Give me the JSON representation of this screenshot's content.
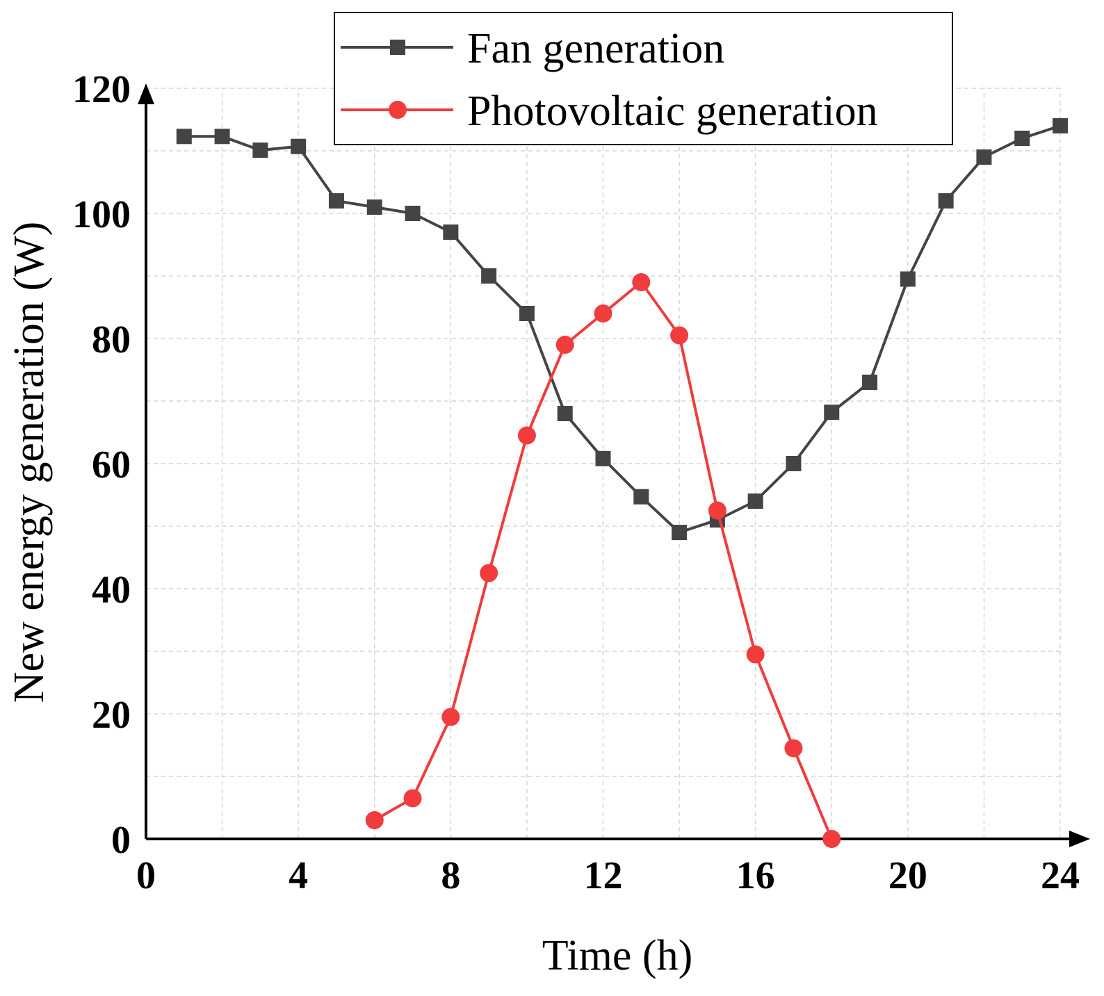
{
  "chart_data": {
    "type": "line",
    "title": "",
    "xlabel": "Time (h)",
    "ylabel": "New energy generation (W)",
    "xlim": [
      0,
      24
    ],
    "ylim": [
      0,
      120
    ],
    "xticks": [
      0,
      4,
      8,
      12,
      16,
      20,
      24
    ],
    "yticks": [
      0,
      20,
      40,
      60,
      80,
      100,
      120
    ],
    "grid": true,
    "legend_position": "top-right",
    "series": [
      {
        "name": "Fan generation",
        "color": "#444444",
        "marker": "square",
        "x": [
          1,
          2,
          3,
          4,
          5,
          6,
          7,
          8,
          9,
          10,
          11,
          12,
          13,
          14,
          15,
          16,
          17,
          18,
          19,
          20,
          21,
          22,
          23,
          24
        ],
        "values": [
          112.3,
          112.3,
          110.1,
          110.7,
          102,
          101,
          100,
          97,
          90,
          84,
          68,
          60.8,
          54.7,
          49,
          51,
          54,
          60,
          68.2,
          73,
          89.5,
          102,
          109,
          112,
          114
        ]
      },
      {
        "name": "Photovoltaic generation",
        "color": "#f03c3c",
        "marker": "circle",
        "x": [
          6,
          7,
          8,
          9,
          10,
          11,
          12,
          13,
          14,
          15,
          16,
          17,
          18
        ],
        "values": [
          3,
          6.5,
          19.5,
          42.5,
          64.5,
          79,
          84,
          89,
          80.5,
          52.5,
          29.5,
          14.5,
          0
        ]
      }
    ]
  }
}
